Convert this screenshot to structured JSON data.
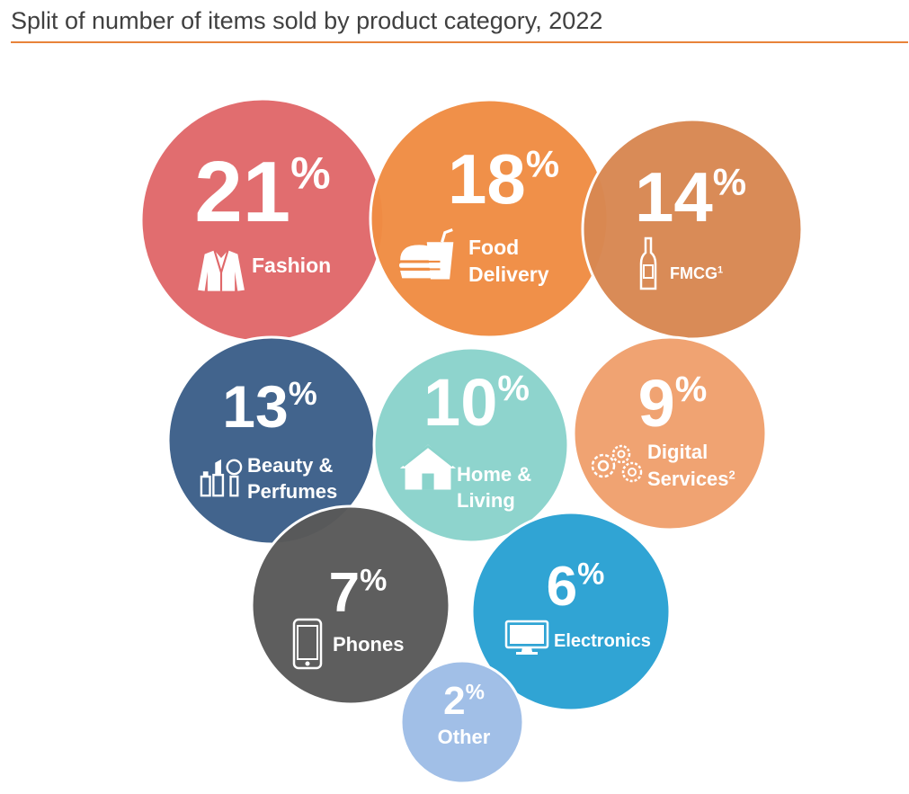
{
  "title": "Split of number of items sold by product category, 2022",
  "chart_data": {
    "type": "bubble",
    "title": "Split of number of items sold by product category, 2022",
    "unit": "%",
    "items": [
      {
        "category": "Fashion",
        "value": 21,
        "label_lines": [
          "Fashion"
        ],
        "color": "#e0686a",
        "icon": "jacket-icon"
      },
      {
        "category": "Food Delivery",
        "value": 18,
        "label_lines": [
          "Food",
          "Delivery"
        ],
        "color": "#ef8c43",
        "icon": "burger-drink-icon"
      },
      {
        "category": "FMCG",
        "value": 14,
        "label_lines": [
          "FMCG"
        ],
        "superscript": "1",
        "color": "#d88752",
        "icon": "bottle-icon"
      },
      {
        "category": "Beauty & Perfumes",
        "value": 13,
        "label_lines": [
          "Beauty &",
          "Perfumes"
        ],
        "color": "#3c5f89",
        "icon": "cosmetics-icon"
      },
      {
        "category": "Home & Living",
        "value": 10,
        "label_lines": [
          "Home &",
          "Living"
        ],
        "color": "#8ad3cb",
        "icon": "house-icon"
      },
      {
        "category": "Digital Services",
        "value": 9,
        "label_lines": [
          "Digital",
          "Services"
        ],
        "superscript": "2",
        "color": "#f0a06d",
        "icon": "gears-icon"
      },
      {
        "category": "Phones",
        "value": 7,
        "label_lines": [
          "Phones"
        ],
        "color": "#595959",
        "icon": "phone-icon"
      },
      {
        "category": "Electronics",
        "value": 6,
        "label_lines": [
          "Electronics"
        ],
        "color": "#29a1d3",
        "icon": "monitor-icon"
      },
      {
        "category": "Other",
        "value": 2,
        "label_lines": [
          "Other"
        ],
        "color": "#9ebde6",
        "icon": ""
      }
    ]
  }
}
